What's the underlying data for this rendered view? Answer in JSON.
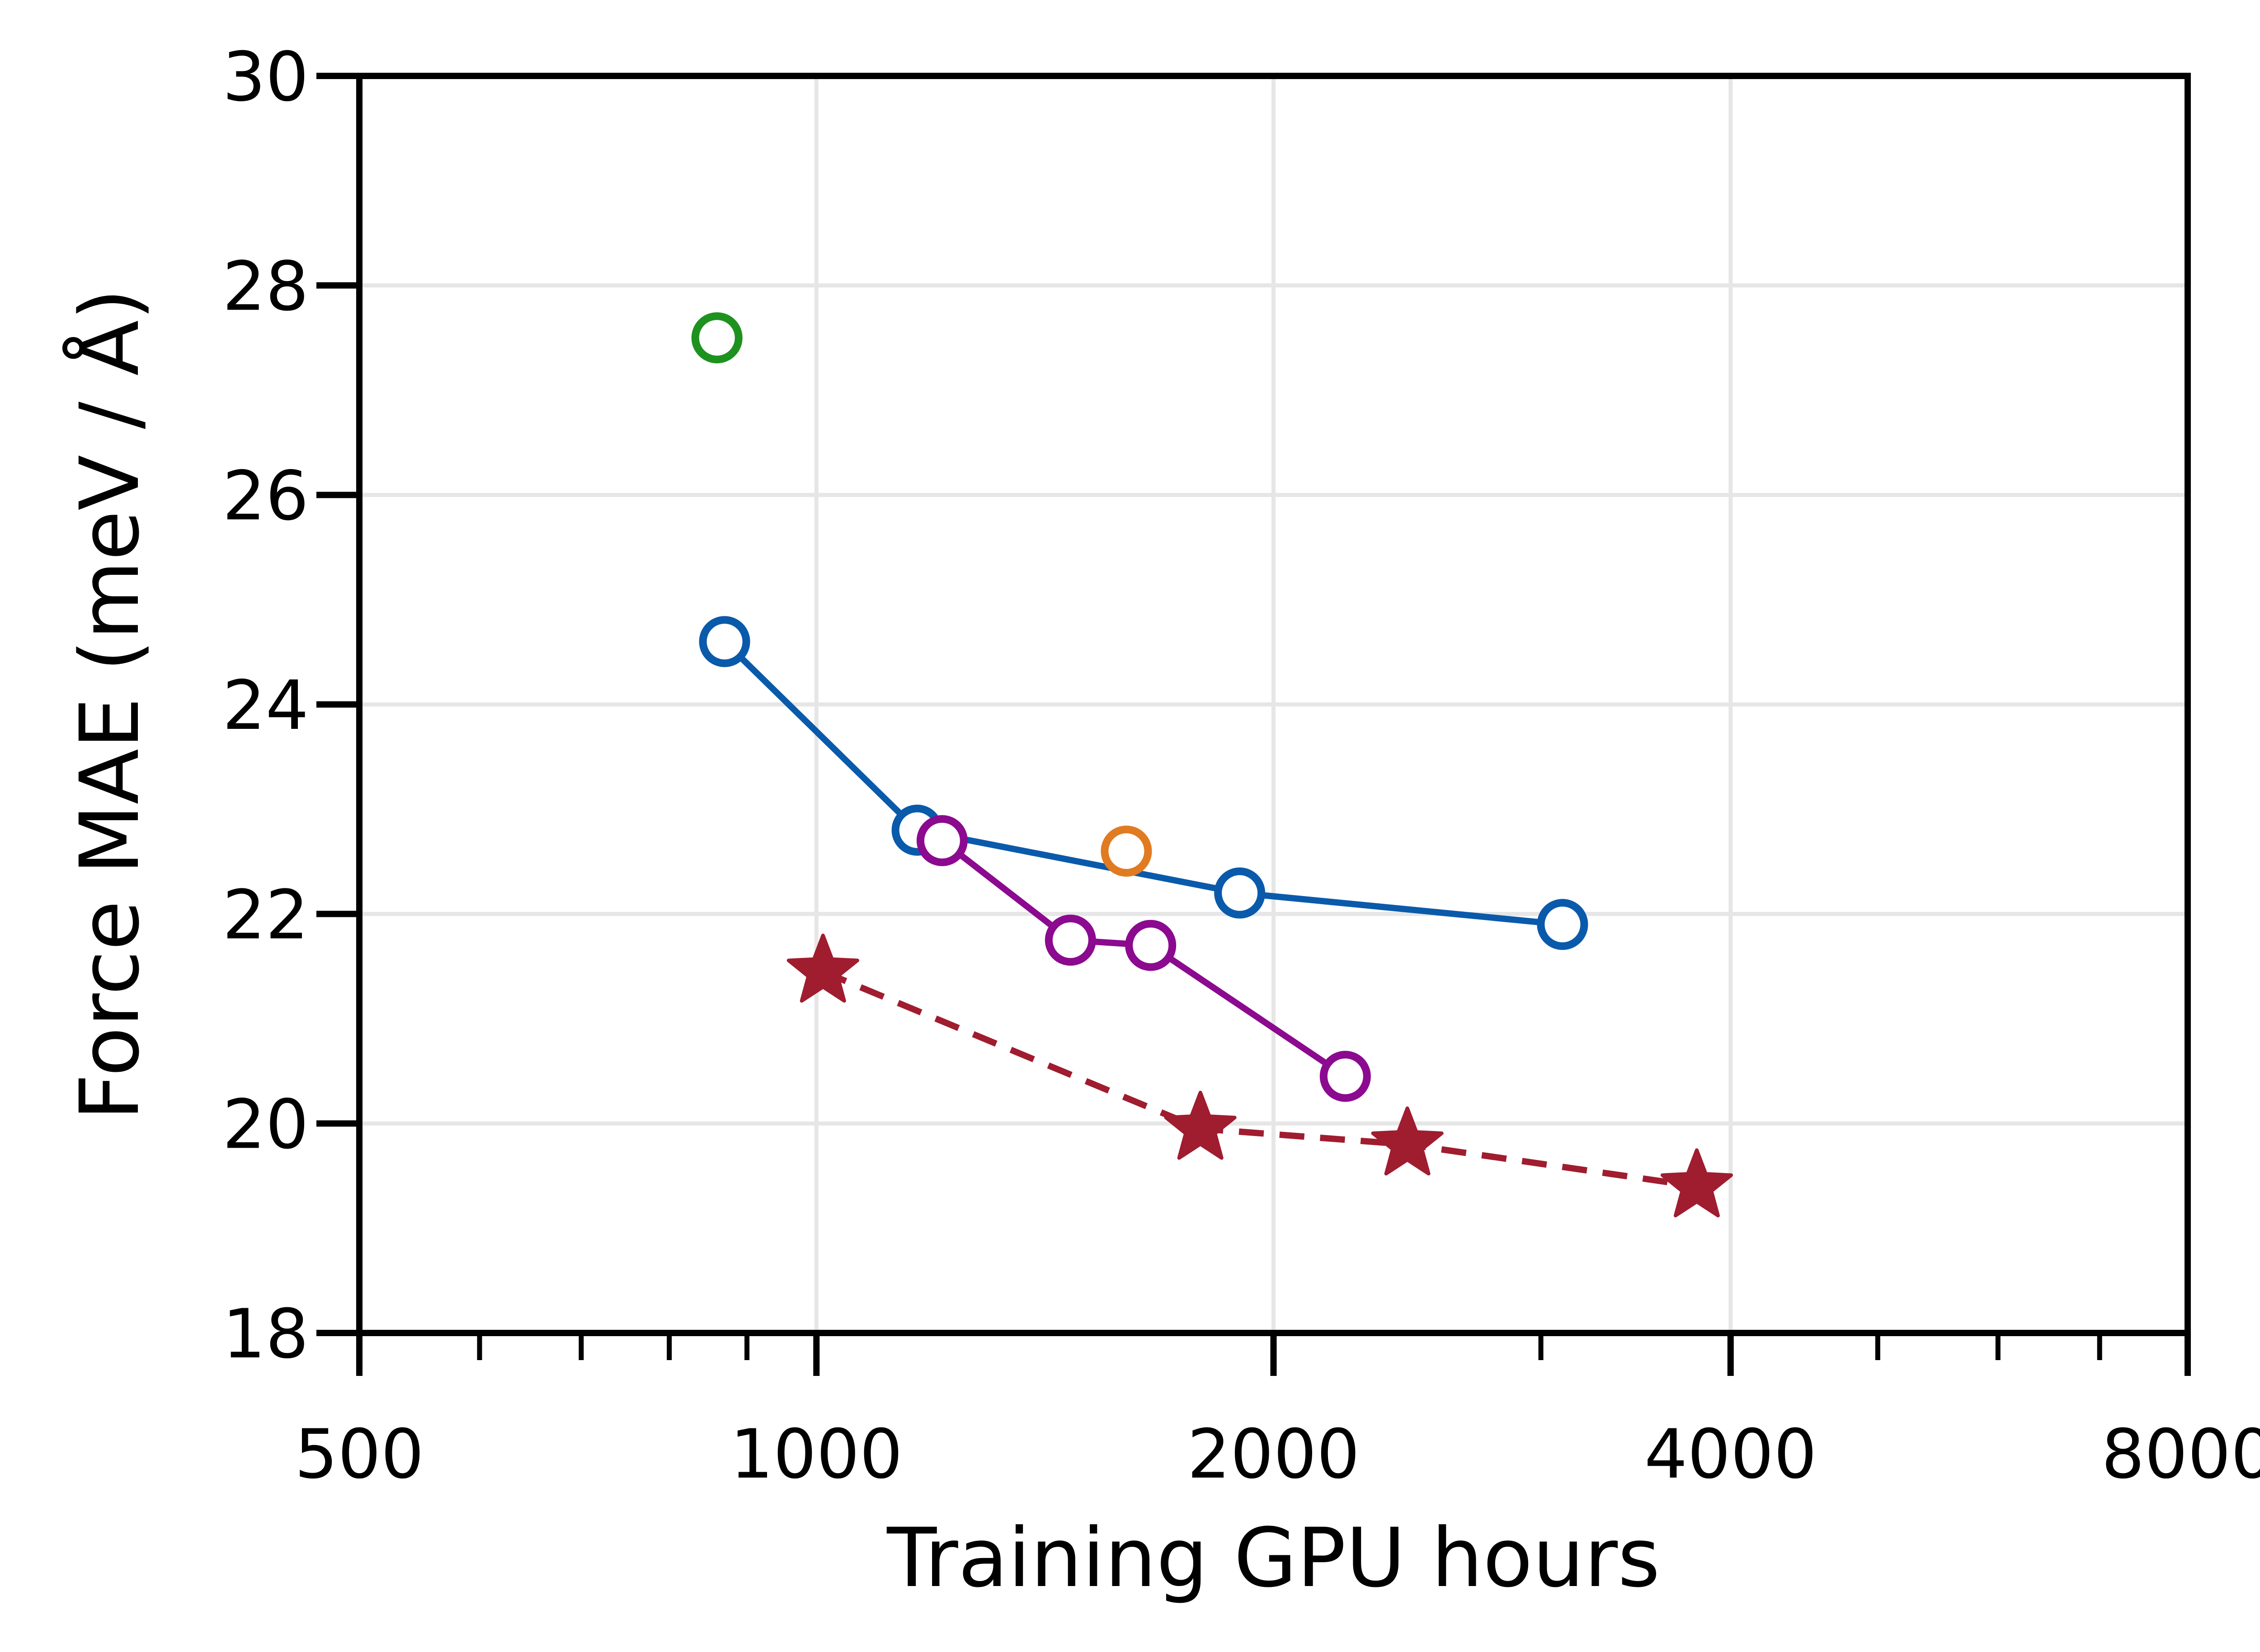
{
  "chart_data": {
    "type": "scatter",
    "title": "",
    "xlabel": "Training GPU hours",
    "ylabel": "Force MAE (meV / Å)",
    "xscale": "log2",
    "xlim": [
      500,
      8000
    ],
    "ylim": [
      18,
      30
    ],
    "x_ticks": [
      500,
      1000,
      2000,
      4000,
      8000
    ],
    "x_tick_labels": [
      "500",
      "1000",
      "2000",
      "4000",
      "8000"
    ],
    "x_minor_ticks": [
      600,
      700,
      800,
      900,
      3000,
      5000,
      6000,
      7000
    ],
    "y_ticks": [
      18,
      20,
      22,
      24,
      26,
      28,
      30
    ],
    "y_tick_labels": [
      "18",
      "20",
      "22",
      "24",
      "26",
      "28",
      "30"
    ],
    "grid": true,
    "series": [
      {
        "name": "blue",
        "color": "#0a5aab",
        "marker": "open-circle",
        "line": "solid",
        "x": [
          870,
          1165,
          1900,
          3100
        ],
        "y": [
          24.6,
          22.8,
          22.2,
          21.9
        ]
      },
      {
        "name": "purple",
        "color": "#8b0a8f",
        "marker": "open-circle",
        "line": "solid",
        "x": [
          1210,
          1470,
          1660,
          2230
        ],
        "y": [
          22.7,
          21.75,
          21.7,
          20.45
        ]
      },
      {
        "name": "red",
        "color": "#a01c2f",
        "marker": "filled-star",
        "line": "dashed",
        "x": [
          1010,
          1790,
          2450,
          3800
        ],
        "y": [
          21.45,
          19.95,
          19.8,
          19.4
        ]
      },
      {
        "name": "green",
        "color": "#1e921e",
        "marker": "open-circle",
        "line": "none",
        "x": [
          860
        ],
        "y": [
          27.5
        ]
      },
      {
        "name": "orange",
        "color": "#e07b22",
        "marker": "open-circle",
        "line": "none",
        "x": [
          1600
        ],
        "y": [
          22.6
        ]
      }
    ]
  }
}
